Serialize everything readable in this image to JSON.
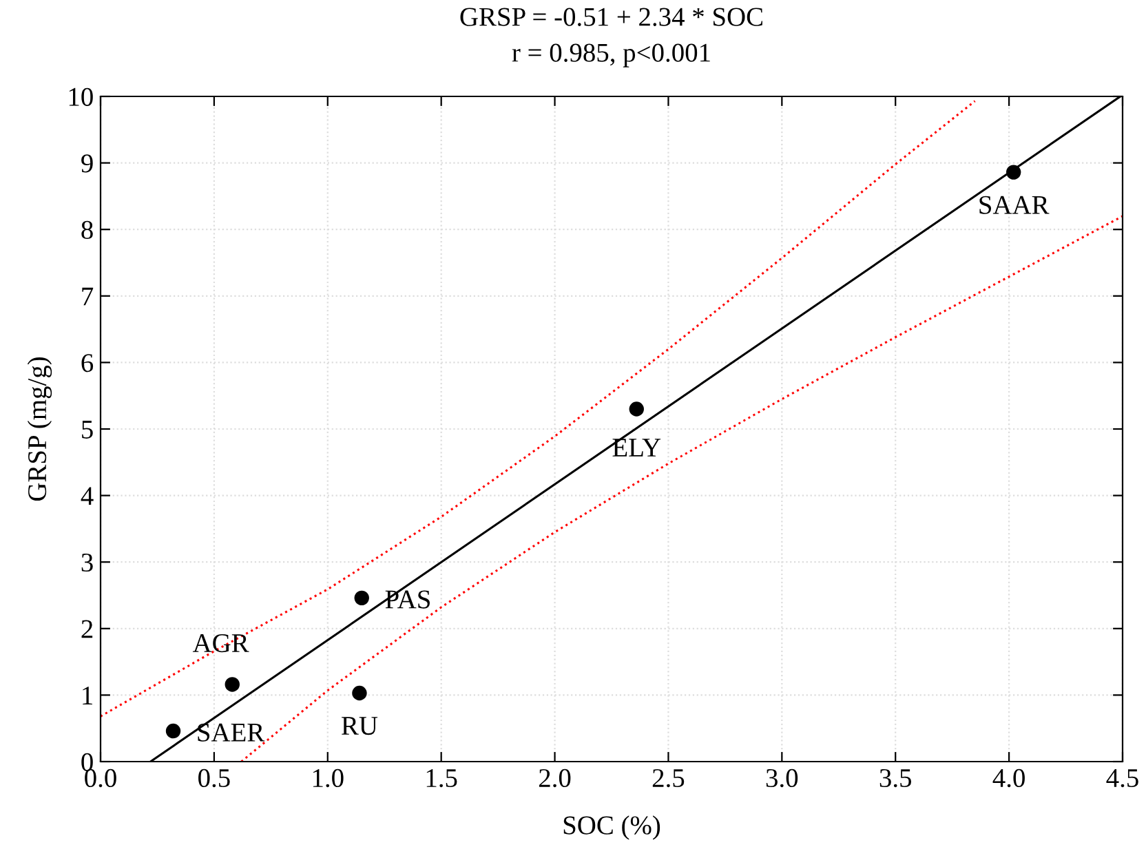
{
  "chart_data": {
    "type": "scatter",
    "title": "GRSP = -0.51 + 2.34 * SOC",
    "subtitle": "r = 0.985, p<0.001",
    "xlabel": "SOC (%)",
    "ylabel": "GRSP (mg/g)",
    "xlim": [
      0,
      4.5
    ],
    "ylim": [
      0,
      10
    ],
    "xticks": [
      {
        "value": 0,
        "label": "0.0"
      },
      0.5,
      {
        "value": 1,
        "label": "1.0"
      },
      1.5,
      {
        "value": 2,
        "label": "2.0"
      },
      2.5,
      {
        "value": 3,
        "label": "3.0"
      },
      3.5,
      {
        "value": 4,
        "label": "4.0"
      },
      4.5
    ],
    "yticks": [
      0,
      1,
      2,
      3,
      4,
      5,
      6,
      7,
      8,
      9,
      10
    ],
    "grid": true,
    "series": [
      {
        "color": "#000000",
        "marker": "circle",
        "x": [
          0.32,
          0.58,
          1.14,
          1.15,
          2.36,
          4.02
        ],
        "values": [
          0.46,
          1.16,
          1.03,
          2.46,
          5.3,
          8.86
        ],
        "value_labels": [
          "SAER",
          "AGR",
          "RU",
          "PAS",
          "ELY",
          "SAAR"
        ]
      },
      {
        "type": "line",
        "color": "#000000",
        "line_style": "solid",
        "marker": "none",
        "x": [
          0.22,
          4.49
        ],
        "values": [
          0.0,
          10.0
        ]
      },
      {
        "type": "line",
        "color": "#ff0000",
        "line_style": "dotted",
        "marker": "none",
        "x": [
          0,
          0.5,
          1,
          1.5,
          2,
          2.5,
          3,
          3.5,
          3.85
        ],
        "values": [
          0.68,
          1.66,
          2.59,
          3.68,
          4.89,
          6.2,
          7.57,
          8.98,
          9.93
        ]
      },
      {
        "type": "line",
        "color": "#ff0000",
        "line_style": "dotted",
        "marker": "none",
        "x": [
          0.62,
          1,
          1.5,
          2,
          2.5,
          3,
          3.5,
          4,
          4.5
        ],
        "values": [
          0.0,
          1.07,
          2.32,
          3.45,
          4.48,
          5.45,
          6.38,
          7.29,
          8.2
        ]
      }
    ]
  }
}
